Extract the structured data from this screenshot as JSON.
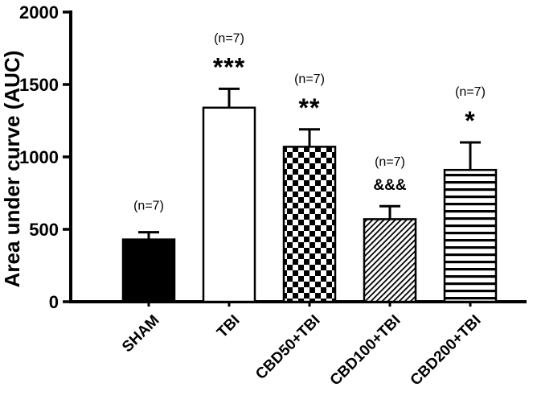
{
  "chart_data": {
    "type": "bar",
    "title": "",
    "xlabel": "",
    "ylabel": "Area under curve (AUC)",
    "ylim": [
      0,
      2000
    ],
    "yticks": [
      0,
      500,
      1000,
      1500,
      2000
    ],
    "categories": [
      "SHAM",
      "TBI",
      "CBD50+TBI",
      "CBD100+TBI",
      "CBD200+TBI"
    ],
    "values": [
      430,
      1340,
      1070,
      570,
      910
    ],
    "errors": [
      50,
      130,
      120,
      90,
      190
    ],
    "n_labels": [
      "(n=7)",
      "(n=7)",
      "(n=7)",
      "(n=7)",
      "(n=7)"
    ],
    "sig_labels": [
      "",
      "***",
      "**",
      "&&&",
      "*"
    ],
    "bar_styles": [
      "solid-black",
      "open-white",
      "checkerboard",
      "diagonal-hatch",
      "horizontal-lines"
    ],
    "legend": "none",
    "grid": false,
    "colors": {
      "bar_edge": "#000000",
      "bar_open_fill": "#ffffff",
      "bar_solid_fill": "#000000",
      "axis": "#000000",
      "background": "#ffffff"
    }
  }
}
